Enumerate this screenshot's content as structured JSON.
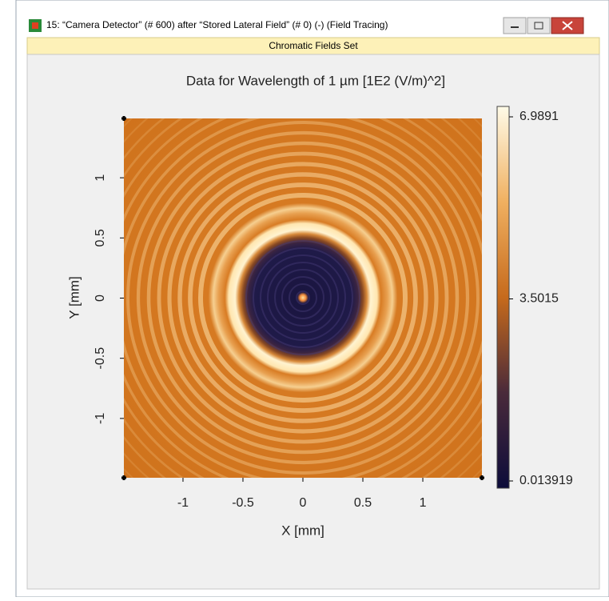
{
  "window": {
    "title": "15: “Camera Detector” (# 600) after “Stored Lateral Field” (# 0) (-) (Field Tracing)",
    "tab": "Chromatic Fields Set"
  },
  "chart_data": {
    "type": "heatmap",
    "title": "Data for Wavelength of 1 µm  [1E2 (V/m)^2]",
    "xlabel": "X [mm]",
    "ylabel": "Y [mm]",
    "xlim": [
      -1.493,
      1.493
    ],
    "ylim": [
      -1.493,
      1.493
    ],
    "xticks": [
      -1,
      -0.5,
      0,
      0.5,
      1
    ],
    "yticks": [
      -1,
      -0.5,
      0,
      0.5,
      1
    ],
    "colorbar": {
      "lim": [
        0.013919,
        6.9891
      ],
      "ticks": [
        6.9891,
        3.5015,
        0.013919
      ]
    }
  }
}
